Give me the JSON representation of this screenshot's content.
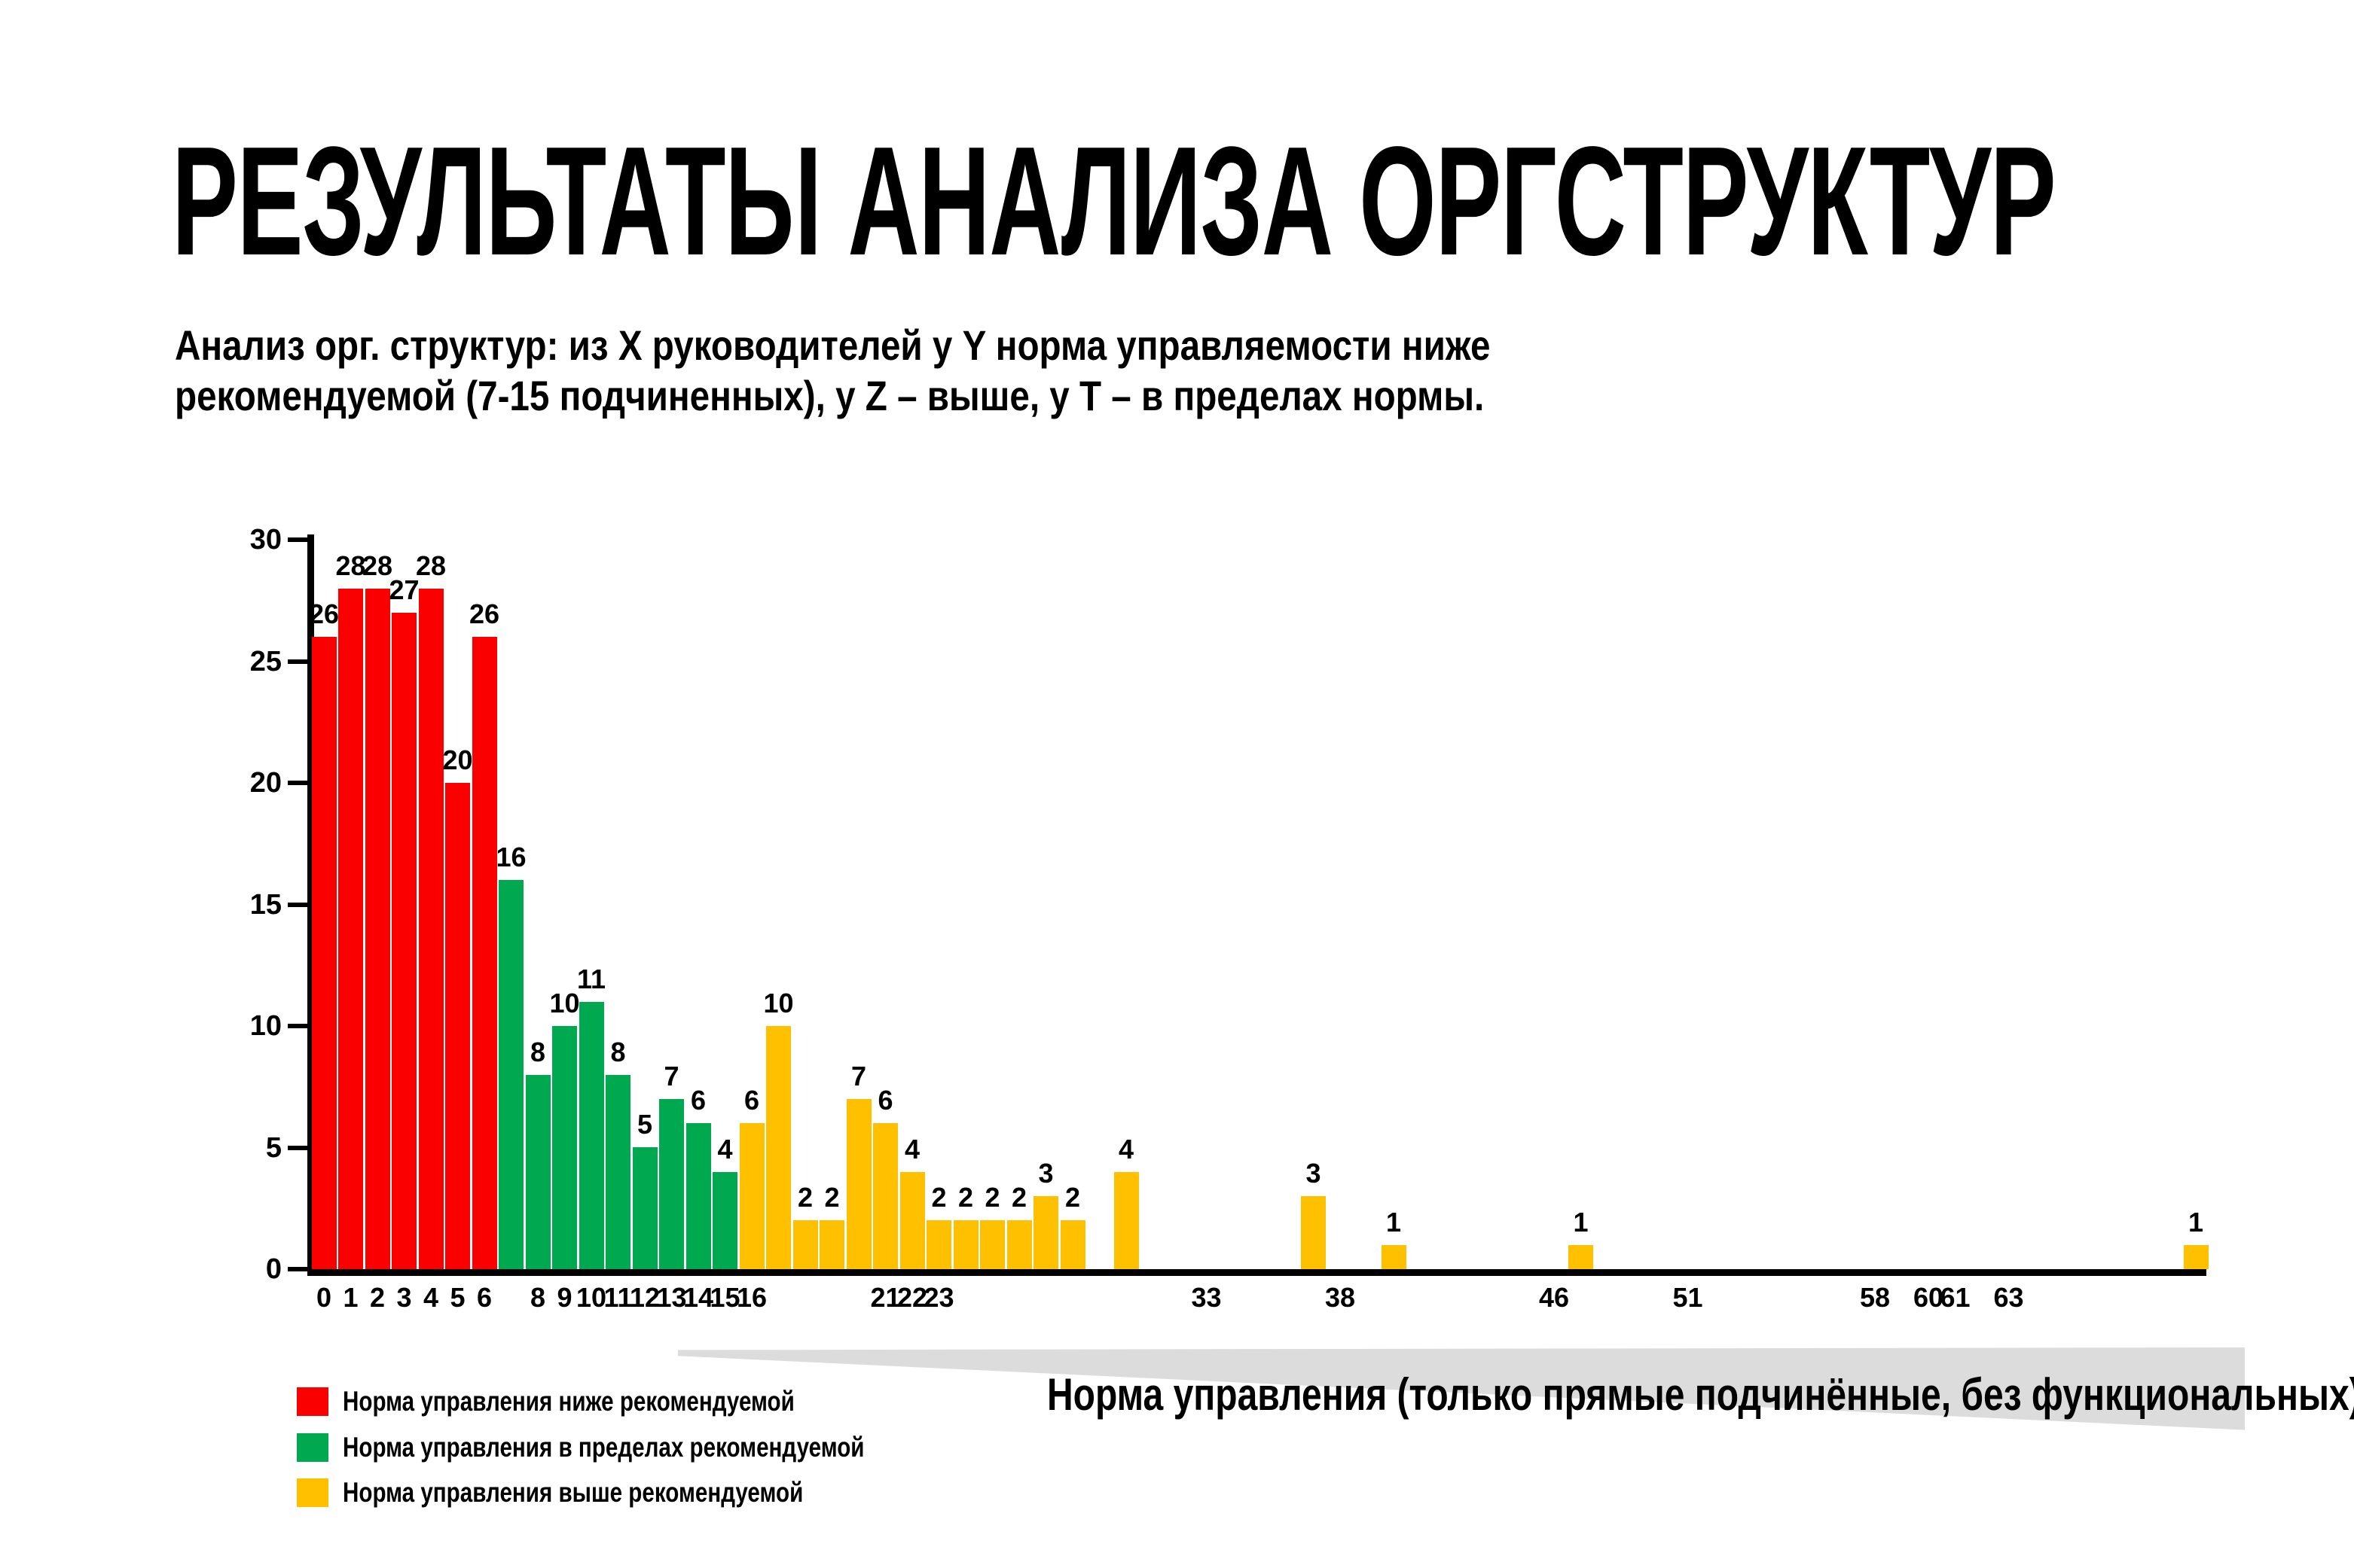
{
  "page": {
    "title": "РЕЗУЛЬТАТЫ АНАЛИЗА ОРГСТРУКТУР",
    "subtitle": "Анализ орг. структур: из X руководителей у Y норма управляемости ниже\nрекомендуемой (7-15 подчиненных), у Z – выше, у T – в пределах нормы."
  },
  "colors": {
    "below": "#fa0000",
    "within": "#00a94f",
    "above": "#ffc000",
    "band": "#dcdcdc",
    "axis": "#000000"
  },
  "legend": [
    {
      "label": "Норма управления ниже рекомендуемой",
      "color_key": "below"
    },
    {
      "label": "Норма управления в пределах рекомендуемой",
      "color_key": "within"
    },
    {
      "label": "Норма управления выше рекомендуемой",
      "color_key": "above"
    }
  ],
  "chart_data": {
    "type": "bar",
    "title": "",
    "xlabel": "Норма управления (только прямые подчинённые, без функциональных)",
    "ylabel": "",
    "ylim": [
      0,
      30
    ],
    "grid": false,
    "legend_position": "bottom-left",
    "y_ticks": [
      0,
      5,
      10,
      15,
      20,
      25,
      30
    ],
    "x_tick_labels": [
      0,
      1,
      2,
      3,
      4,
      5,
      6,
      8,
      9,
      10,
      11,
      12,
      13,
      14,
      15,
      16,
      21,
      22,
      23,
      33,
      38,
      46,
      51,
      58,
      60,
      61,
      63
    ],
    "bars": [
      {
        "x": 0,
        "value": 26,
        "category": "below"
      },
      {
        "x": 1,
        "value": 28,
        "category": "below"
      },
      {
        "x": 2,
        "value": 28,
        "category": "below"
      },
      {
        "x": 3,
        "value": 27,
        "category": "below"
      },
      {
        "x": 4,
        "value": 28,
        "category": "below"
      },
      {
        "x": 5,
        "value": 20,
        "category": "below"
      },
      {
        "x": 6,
        "value": 26,
        "category": "below"
      },
      {
        "x": 7,
        "value": 16,
        "category": "within"
      },
      {
        "x": 8,
        "value": 8,
        "category": "within"
      },
      {
        "x": 9,
        "value": 10,
        "category": "within"
      },
      {
        "x": 10,
        "value": 11,
        "category": "within"
      },
      {
        "x": 11,
        "value": 8,
        "category": "within"
      },
      {
        "x": 12,
        "value": 5,
        "category": "within"
      },
      {
        "x": 13,
        "value": 7,
        "category": "within"
      },
      {
        "x": 14,
        "value": 6,
        "category": "within"
      },
      {
        "x": 15,
        "value": 4,
        "category": "within"
      },
      {
        "x": 16,
        "value": 6,
        "category": "above"
      },
      {
        "x": 17,
        "value": 10,
        "category": "above"
      },
      {
        "x": 18,
        "value": 2,
        "category": "above"
      },
      {
        "x": 19,
        "value": 2,
        "category": "above"
      },
      {
        "x": 20,
        "value": 7,
        "category": "above"
      },
      {
        "x": 21,
        "value": 6,
        "category": "above"
      },
      {
        "x": 22,
        "value": 4,
        "category": "above"
      },
      {
        "x": 23,
        "value": 2,
        "category": "above"
      },
      {
        "x": 24,
        "value": 2,
        "category": "above"
      },
      {
        "x": 25,
        "value": 2,
        "category": "above"
      },
      {
        "x": 26,
        "value": 2,
        "category": "above"
      },
      {
        "x": 27,
        "value": 3,
        "category": "above"
      },
      {
        "x": 28,
        "value": 2,
        "category": "above"
      },
      {
        "x": 30,
        "value": 4,
        "category": "above"
      },
      {
        "x": 37,
        "value": 3,
        "category": "above"
      },
      {
        "x": 40,
        "value": 1,
        "category": "above"
      },
      {
        "x": 47,
        "value": 1,
        "category": "above"
      },
      {
        "x": 70,
        "value": 1,
        "category": "above"
      }
    ]
  }
}
